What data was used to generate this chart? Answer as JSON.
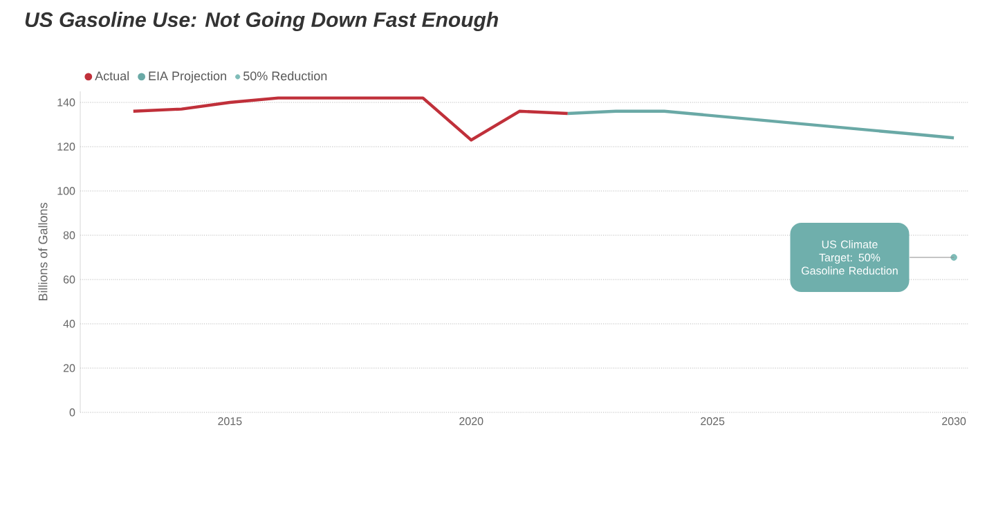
{
  "chart_data": {
    "type": "line",
    "title": "US Gasoline Use: Not Going Down Fast Enough",
    "ylabel": "Billions of Gallons",
    "series": [
      {
        "name": "Actual",
        "color": "#c0303a",
        "x": [
          2013,
          2014,
          2015,
          2016,
          2017,
          2018,
          2019,
          2020,
          2021,
          2022
        ],
        "values": [
          136,
          137,
          140,
          142,
          142,
          142,
          142,
          123,
          136,
          135
        ]
      },
      {
        "name": "EIA Projection",
        "color": "#6aa9a6",
        "x": [
          2022,
          2023,
          2024,
          2025,
          2026,
          2027,
          2028,
          2029,
          2030
        ],
        "values": [
          135,
          136,
          136,
          134,
          132,
          130,
          128,
          126,
          124
        ]
      },
      {
        "name": "50% Reduction",
        "color": "#7fbcb8",
        "type": "scatter",
        "marker": "circle",
        "x": [
          2030
        ],
        "values": [
          70
        ]
      }
    ],
    "annotations": [
      {
        "text": "US Climate Target: 50% Gasoline Reduction",
        "x": 2030,
        "y": 70
      }
    ],
    "xlim": [
      2011.9,
      2030.3
    ],
    "ylim": [
      0,
      145
    ],
    "xticks": [
      2015,
      2020,
      2025,
      2030
    ],
    "yticks": [
      0,
      20,
      40,
      60,
      80,
      100,
      120,
      140
    ],
    "grid": "y",
    "legend": "top left"
  }
}
